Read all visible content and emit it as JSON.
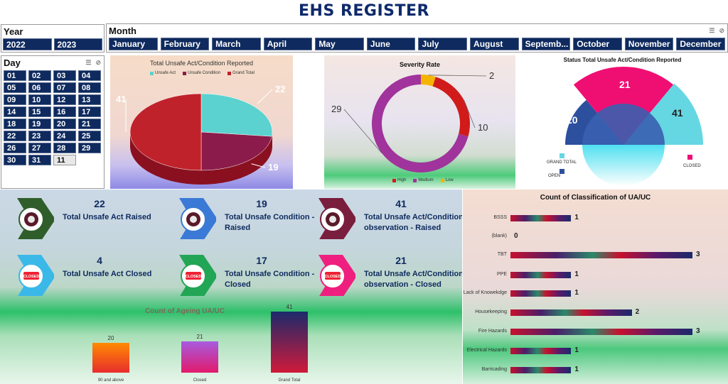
{
  "title": "EHS REGISTER",
  "year_slicer": {
    "label": "Year",
    "items": [
      "2022",
      "2023"
    ]
  },
  "month_slicer": {
    "label": "Month",
    "items": [
      "January",
      "February",
      "March",
      "April",
      "May",
      "June",
      "July",
      "August",
      "Septemb...",
      "October",
      "November",
      "December"
    ]
  },
  "day_slicer": {
    "label": "Day",
    "items": [
      "01",
      "02",
      "03",
      "04",
      "05",
      "06",
      "07",
      "08",
      "09",
      "10",
      "12",
      "13",
      "14",
      "15",
      "16",
      "17",
      "18",
      "19",
      "20",
      "21",
      "22",
      "23",
      "24",
      "25",
      "26",
      "27",
      "28",
      "29",
      "30",
      "31",
      "11"
    ],
    "selected": "11"
  },
  "slicer_icons": [
    "multi-select-icon",
    "clear-filter-icon"
  ],
  "chart_data": [
    {
      "type": "pie",
      "title": "Total Unsafe Act/Condition Reported",
      "legend": [
        "Unsafe Act",
        "Unsafe Condition",
        "Grand Total"
      ],
      "values": [
        22,
        19,
        41
      ],
      "labels": [
        "22",
        "19",
        "41"
      ],
      "colors": [
        "#5bd2cf",
        "#8b1b4a",
        "#c0222b"
      ]
    },
    {
      "type": "pie",
      "title": "Severity Rate",
      "legend": [
        "High",
        "Medium",
        "Low"
      ],
      "values": [
        10,
        29,
        2
      ],
      "labels": [
        "10",
        "29",
        "2"
      ],
      "colors": [
        "#d11b1b",
        "#a0339c",
        "#f5b400"
      ]
    },
    {
      "type": "pie",
      "title": "Status Total Unsafe Act/Condition Reported",
      "legend": [
        "GRAND TOTAL",
        "OPEN",
        "CLOSED"
      ],
      "values": [
        41,
        20,
        21
      ],
      "labels": [
        "41",
        "20",
        "21"
      ],
      "colors": [
        "#65d7e3",
        "#2c4f9e",
        "#ef0f73"
      ]
    },
    {
      "type": "bar",
      "title": "Count of Ageing UA/UC",
      "categories": [
        "90 and above",
        "Closed",
        "Grand Total"
      ],
      "values": [
        20,
        21,
        41
      ],
      "colors": [
        "#ff7a00",
        "#b84fd8",
        "#1c2a6b"
      ]
    },
    {
      "type": "bar",
      "title": "Count of Classification of UA/UC",
      "categories": [
        "BSSS",
        "(blank)",
        "TBT",
        "PPE",
        "Lack of Knowekdge",
        "Housekeeping",
        "Fire Hazards",
        "Electrical Hazards",
        "Barricading"
      ],
      "values": [
        1,
        0,
        3,
        1,
        1,
        2,
        3,
        1,
        1
      ],
      "xlim": [
        0,
        3
      ]
    }
  ],
  "kpis": [
    {
      "value": "22",
      "label": "Total Unsafe Act  Raised",
      "color": "#2f5e2a",
      "icon": "safety-badge-icon"
    },
    {
      "value": "19",
      "label": "Total Unsafe Condition - Raised",
      "color": "#3a7ad6",
      "icon": "safety-badge-icon"
    },
    {
      "value": "41",
      "label": "Total Unsafe Act/Condition observation - Raised",
      "color": "#7a1e3e",
      "icon": "safety-badge-icon"
    },
    {
      "value": "4",
      "label": "Total Unsafe Act  Closed",
      "color": "#3ab8e8",
      "icon": "closed-sign-icon",
      "sign": "CLOSED"
    },
    {
      "value": "17",
      "label": "Total Unsafe Condition - Closed",
      "color": "#22a655",
      "icon": "closed-sign-icon",
      "sign": "CLOSED"
    },
    {
      "value": "21",
      "label": "Total Unsafe Act/Condition observation - Closed",
      "color": "#ef1f7f",
      "icon": "closed-sign-icon",
      "sign": "CLOSED"
    }
  ]
}
